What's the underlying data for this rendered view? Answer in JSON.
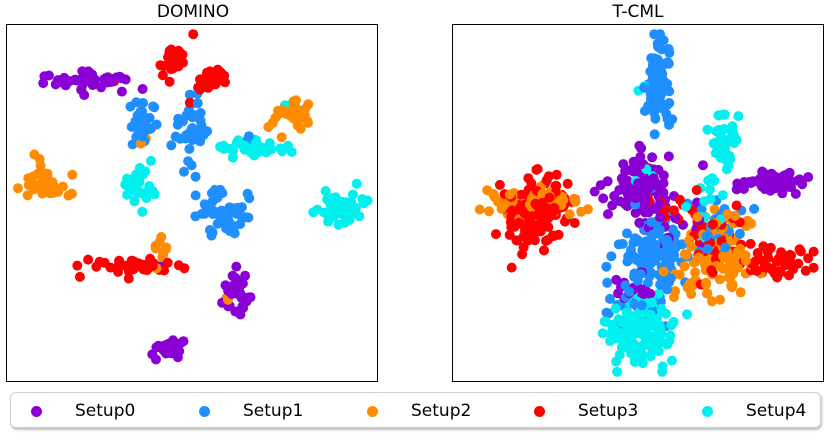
{
  "chart_data": [
    {
      "type": "scatter",
      "title": "DOMINO",
      "xlabel": "",
      "ylabel": "",
      "axis_ticks": false,
      "grid": false,
      "series": [
        {
          "name": "Setup0",
          "color": "#8a00d4",
          "clusters": [
            {
              "x": 0.22,
              "y": 0.85,
              "sx": 0.055,
              "sy": 0.015,
              "n": 45
            },
            {
              "x": 0.625,
              "y": 0.23,
              "sx": 0.018,
              "sy": 0.04,
              "n": 30
            },
            {
              "x": 0.44,
              "y": 0.08,
              "sx": 0.025,
              "sy": 0.018,
              "n": 25
            },
            {
              "x": 0.41,
              "y": 0.32,
              "sx": 0.005,
              "sy": 0.005,
              "n": 1
            }
          ]
        },
        {
          "name": "Setup1",
          "color": "#1f8fff",
          "clusters": [
            {
              "x": 0.365,
              "y": 0.72,
              "sx": 0.018,
              "sy": 0.035,
              "n": 28
            },
            {
              "x": 0.5,
              "y": 0.71,
              "sx": 0.022,
              "sy": 0.04,
              "n": 40
            },
            {
              "x": 0.59,
              "y": 0.47,
              "sx": 0.035,
              "sy": 0.035,
              "n": 45
            },
            {
              "x": 0.65,
              "y": 0.68,
              "sx": 0.012,
              "sy": 0.01,
              "n": 4
            }
          ]
        },
        {
          "name": "Setup2",
          "color": "#ff8c00",
          "clusters": [
            {
              "x": 0.09,
              "y": 0.56,
              "sx": 0.03,
              "sy": 0.025,
              "n": 30
            },
            {
              "x": 0.41,
              "y": 0.34,
              "sx": 0.01,
              "sy": 0.03,
              "n": 12
            },
            {
              "x": 0.775,
              "y": 0.75,
              "sx": 0.03,
              "sy": 0.025,
              "n": 30
            },
            {
              "x": 0.6,
              "y": 0.22,
              "sx": 0.008,
              "sy": 0.012,
              "n": 3
            },
            {
              "x": 0.355,
              "y": 0.68,
              "sx": 0.006,
              "sy": 0.006,
              "n": 2
            }
          ]
        },
        {
          "name": "Setup3",
          "color": "#ff0000",
          "clusters": [
            {
              "x": 0.45,
              "y": 0.91,
              "sx": 0.02,
              "sy": 0.025,
              "n": 25
            },
            {
              "x": 0.555,
              "y": 0.86,
              "sx": 0.02,
              "sy": 0.02,
              "n": 25
            },
            {
              "x": 0.33,
              "y": 0.32,
              "sx": 0.07,
              "sy": 0.012,
              "n": 40
            },
            {
              "x": 0.49,
              "y": 0.78,
              "sx": 0.005,
              "sy": 0.005,
              "n": 1
            },
            {
              "x": 0.28,
              "y": 0.85,
              "sx": 0.005,
              "sy": 0.005,
              "n": 1
            }
          ]
        },
        {
          "name": "Setup4",
          "color": "#00f0f0",
          "clusters": [
            {
              "x": 0.66,
              "y": 0.66,
              "sx": 0.045,
              "sy": 0.012,
              "n": 40
            },
            {
              "x": 0.35,
              "y": 0.55,
              "sx": 0.018,
              "sy": 0.025,
              "n": 30
            },
            {
              "x": 0.91,
              "y": 0.49,
              "sx": 0.035,
              "sy": 0.025,
              "n": 45
            },
            {
              "x": 0.78,
              "y": 0.77,
              "sx": 0.02,
              "sy": 0.008,
              "n": 5
            }
          ]
        }
      ]
    },
    {
      "type": "scatter",
      "title": "T-CML",
      "xlabel": "",
      "ylabel": "",
      "axis_ticks": false,
      "grid": false,
      "series": [
        {
          "name": "Setup0",
          "color": "#8a00d4",
          "clusters": [
            {
              "x": 0.51,
              "y": 0.54,
              "sx": 0.04,
              "sy": 0.045,
              "n": 110
            },
            {
              "x": 0.88,
              "y": 0.56,
              "sx": 0.045,
              "sy": 0.018,
              "n": 45
            },
            {
              "x": 0.5,
              "y": 0.25,
              "sx": 0.04,
              "sy": 0.02,
              "n": 20
            },
            {
              "x": 0.6,
              "y": 0.45,
              "sx": 0.05,
              "sy": 0.06,
              "n": 15
            }
          ]
        },
        {
          "name": "Setup1",
          "color": "#1f8fff",
          "clusters": [
            {
              "x": 0.54,
              "y": 0.36,
              "sx": 0.04,
              "sy": 0.06,
              "n": 120
            },
            {
              "x": 0.56,
              "y": 0.85,
              "sx": 0.02,
              "sy": 0.07,
              "n": 70
            },
            {
              "x": 0.72,
              "y": 0.42,
              "sx": 0.03,
              "sy": 0.04,
              "n": 40
            },
            {
              "x": 0.48,
              "y": 0.2,
              "sx": 0.04,
              "sy": 0.03,
              "n": 20
            }
          ]
        },
        {
          "name": "Setup2",
          "color": "#ff8c00",
          "clusters": [
            {
              "x": 0.21,
              "y": 0.5,
              "sx": 0.07,
              "sy": 0.02,
              "n": 60
            },
            {
              "x": 0.74,
              "y": 0.37,
              "sx": 0.05,
              "sy": 0.06,
              "n": 100
            },
            {
              "x": 0.64,
              "y": 0.26,
              "sx": 0.04,
              "sy": 0.02,
              "n": 15
            }
          ]
        },
        {
          "name": "Setup3",
          "color": "#ff0000",
          "clusters": [
            {
              "x": 0.22,
              "y": 0.47,
              "sx": 0.045,
              "sy": 0.05,
              "n": 150
            },
            {
              "x": 0.87,
              "y": 0.33,
              "sx": 0.06,
              "sy": 0.025,
              "n": 45
            },
            {
              "x": 0.71,
              "y": 0.4,
              "sx": 0.04,
              "sy": 0.06,
              "n": 40
            },
            {
              "x": 0.58,
              "y": 0.48,
              "sx": 0.06,
              "sy": 0.03,
              "n": 15
            }
          ]
        },
        {
          "name": "Setup4",
          "color": "#00f0f0",
          "clusters": [
            {
              "x": 0.5,
              "y": 0.13,
              "sx": 0.045,
              "sy": 0.045,
              "n": 140
            },
            {
              "x": 0.74,
              "y": 0.66,
              "sx": 0.02,
              "sy": 0.05,
              "n": 40
            },
            {
              "x": 0.7,
              "y": 0.48,
              "sx": 0.025,
              "sy": 0.04,
              "n": 15
            },
            {
              "x": 0.5,
              "y": 0.58,
              "sx": 0.03,
              "sy": 0.02,
              "n": 6
            },
            {
              "x": 0.5,
              "y": 0.83,
              "sx": 0.01,
              "sy": 0.01,
              "n": 2
            }
          ]
        }
      ]
    }
  ],
  "legend": {
    "placement": "bottom",
    "items": [
      {
        "label": "Setup0",
        "color": "#8a00d4"
      },
      {
        "label": "Setup1",
        "color": "#1f8fff"
      },
      {
        "label": "Setup2",
        "color": "#ff8c00"
      },
      {
        "label": "Setup3",
        "color": "#ff0000"
      },
      {
        "label": "Setup4",
        "color": "#00f0f0"
      }
    ]
  }
}
